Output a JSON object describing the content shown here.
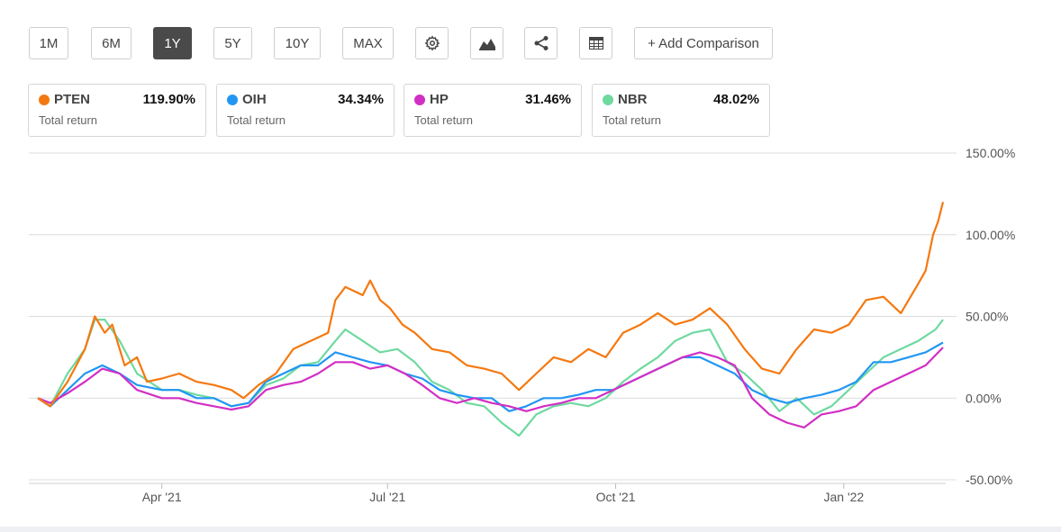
{
  "toolbar": {
    "periods": [
      "1M",
      "6M",
      "1Y",
      "5Y",
      "10Y",
      "MAX"
    ],
    "active_period": "1Y",
    "icons": [
      "gear-icon",
      "chart-type-icon",
      "share-icon",
      "table-icon"
    ],
    "add_comparison": "+ Add Comparison"
  },
  "cards": [
    {
      "symbol": "PTEN",
      "value": "119.90%",
      "sub": "Total return",
      "color": "#f5780f"
    },
    {
      "symbol": "OIH",
      "value": "34.34%",
      "sub": "Total return",
      "color": "#2196f3"
    },
    {
      "symbol": "HP",
      "value": "31.46%",
      "sub": "Total return",
      "color": "#d12fc4"
    },
    {
      "symbol": "NBR",
      "value": "48.02%",
      "sub": "Total return",
      "color": "#6fd9a0"
    }
  ],
  "chart_data": {
    "type": "line",
    "title": "",
    "xlabel": "",
    "ylabel": "",
    "ylim": [
      -50,
      150
    ],
    "yticks": [
      "150.00%",
      "100.00%",
      "50.00%",
      "0.00%",
      "-50.00%"
    ],
    "ytick_values": [
      150,
      100,
      50,
      0,
      -50
    ],
    "xticks": [
      "Apr '21",
      "Jul '21",
      "Oct '21",
      "Jan '22"
    ],
    "xtick_dates": [
      "2021-04-01",
      "2021-07-01",
      "2021-10-01",
      "2022-01-01"
    ],
    "x_range": [
      "2021-02-10",
      "2022-02-10"
    ],
    "grid": true,
    "series": [
      {
        "name": "PTEN",
        "color": "#f5780f",
        "points": [
          [
            "2021-02-10",
            0
          ],
          [
            "2021-02-15",
            -5
          ],
          [
            "2021-02-22",
            10
          ],
          [
            "2021-03-01",
            30
          ],
          [
            "2021-03-05",
            50
          ],
          [
            "2021-03-09",
            40
          ],
          [
            "2021-03-12",
            45
          ],
          [
            "2021-03-17",
            20
          ],
          [
            "2021-03-22",
            25
          ],
          [
            "2021-03-26",
            10
          ],
          [
            "2021-04-01",
            12
          ],
          [
            "2021-04-08",
            15
          ],
          [
            "2021-04-15",
            10
          ],
          [
            "2021-04-22",
            8
          ],
          [
            "2021-04-29",
            5
          ],
          [
            "2021-05-04",
            0
          ],
          [
            "2021-05-10",
            8
          ],
          [
            "2021-05-17",
            15
          ],
          [
            "2021-05-24",
            30
          ],
          [
            "2021-05-31",
            35
          ],
          [
            "2021-06-07",
            40
          ],
          [
            "2021-06-10",
            60
          ],
          [
            "2021-06-14",
            68
          ],
          [
            "2021-06-21",
            63
          ],
          [
            "2021-06-24",
            72
          ],
          [
            "2021-06-28",
            60
          ],
          [
            "2021-07-02",
            55
          ],
          [
            "2021-07-07",
            45
          ],
          [
            "2021-07-12",
            40
          ],
          [
            "2021-07-19",
            30
          ],
          [
            "2021-07-26",
            28
          ],
          [
            "2021-08-02",
            20
          ],
          [
            "2021-08-09",
            18
          ],
          [
            "2021-08-16",
            15
          ],
          [
            "2021-08-23",
            5
          ],
          [
            "2021-08-30",
            15
          ],
          [
            "2021-09-06",
            25
          ],
          [
            "2021-09-13",
            22
          ],
          [
            "2021-09-20",
            30
          ],
          [
            "2021-09-27",
            25
          ],
          [
            "2021-10-04",
            40
          ],
          [
            "2021-10-11",
            45
          ],
          [
            "2021-10-18",
            52
          ],
          [
            "2021-10-25",
            45
          ],
          [
            "2021-11-01",
            48
          ],
          [
            "2021-11-08",
            55
          ],
          [
            "2021-11-15",
            45
          ],
          [
            "2021-11-22",
            30
          ],
          [
            "2021-11-29",
            18
          ],
          [
            "2021-12-06",
            15
          ],
          [
            "2021-12-13",
            30
          ],
          [
            "2021-12-20",
            42
          ],
          [
            "2021-12-27",
            40
          ],
          [
            "2022-01-03",
            45
          ],
          [
            "2022-01-10",
            60
          ],
          [
            "2022-01-17",
            62
          ],
          [
            "2022-01-24",
            52
          ],
          [
            "2022-01-31",
            70
          ],
          [
            "2022-02-03",
            78
          ],
          [
            "2022-02-06",
            100
          ],
          [
            "2022-02-08",
            108
          ],
          [
            "2022-02-10",
            120
          ]
        ]
      },
      {
        "name": "OIH",
        "color": "#2196f3",
        "points": [
          [
            "2021-02-10",
            0
          ],
          [
            "2021-02-15",
            -5
          ],
          [
            "2021-02-22",
            5
          ],
          [
            "2021-03-01",
            15
          ],
          [
            "2021-03-08",
            20
          ],
          [
            "2021-03-15",
            15
          ],
          [
            "2021-03-22",
            8
          ],
          [
            "2021-04-01",
            5
          ],
          [
            "2021-04-08",
            5
          ],
          [
            "2021-04-15",
            0
          ],
          [
            "2021-04-22",
            0
          ],
          [
            "2021-04-29",
            -5
          ],
          [
            "2021-05-06",
            -3
          ],
          [
            "2021-05-13",
            10
          ],
          [
            "2021-05-20",
            15
          ],
          [
            "2021-05-27",
            20
          ],
          [
            "2021-06-03",
            20
          ],
          [
            "2021-06-10",
            28
          ],
          [
            "2021-06-17",
            25
          ],
          [
            "2021-06-24",
            22
          ],
          [
            "2021-07-01",
            20
          ],
          [
            "2021-07-08",
            15
          ],
          [
            "2021-07-15",
            12
          ],
          [
            "2021-07-22",
            5
          ],
          [
            "2021-07-29",
            2
          ],
          [
            "2021-08-05",
            0
          ],
          [
            "2021-08-12",
            0
          ],
          [
            "2021-08-19",
            -8
          ],
          [
            "2021-08-26",
            -5
          ],
          [
            "2021-09-02",
            0
          ],
          [
            "2021-09-09",
            0
          ],
          [
            "2021-09-16",
            2
          ],
          [
            "2021-09-23",
            5
          ],
          [
            "2021-09-30",
            5
          ],
          [
            "2021-10-07",
            10
          ],
          [
            "2021-10-14",
            15
          ],
          [
            "2021-10-21",
            20
          ],
          [
            "2021-10-28",
            25
          ],
          [
            "2021-11-04",
            25
          ],
          [
            "2021-11-11",
            20
          ],
          [
            "2021-11-18",
            15
          ],
          [
            "2021-11-25",
            5
          ],
          [
            "2021-12-02",
            0
          ],
          [
            "2021-12-09",
            -3
          ],
          [
            "2021-12-16",
            0
          ],
          [
            "2021-12-23",
            2
          ],
          [
            "2021-12-30",
            5
          ],
          [
            "2022-01-06",
            10
          ],
          [
            "2022-01-13",
            22
          ],
          [
            "2022-01-20",
            22
          ],
          [
            "2022-01-27",
            25
          ],
          [
            "2022-02-03",
            28
          ],
          [
            "2022-02-10",
            34
          ]
        ]
      },
      {
        "name": "HP",
        "color": "#d12fc4",
        "points": [
          [
            "2021-02-10",
            0
          ],
          [
            "2021-02-15",
            -3
          ],
          [
            "2021-02-22",
            3
          ],
          [
            "2021-03-01",
            10
          ],
          [
            "2021-03-08",
            18
          ],
          [
            "2021-03-15",
            15
          ],
          [
            "2021-03-22",
            5
          ],
          [
            "2021-04-01",
            0
          ],
          [
            "2021-04-08",
            0
          ],
          [
            "2021-04-15",
            -3
          ],
          [
            "2021-04-22",
            -5
          ],
          [
            "2021-04-29",
            -7
          ],
          [
            "2021-05-06",
            -5
          ],
          [
            "2021-05-13",
            5
          ],
          [
            "2021-05-20",
            8
          ],
          [
            "2021-05-27",
            10
          ],
          [
            "2021-06-03",
            15
          ],
          [
            "2021-06-10",
            22
          ],
          [
            "2021-06-17",
            22
          ],
          [
            "2021-06-24",
            18
          ],
          [
            "2021-07-01",
            20
          ],
          [
            "2021-07-08",
            15
          ],
          [
            "2021-07-15",
            8
          ],
          [
            "2021-07-22",
            0
          ],
          [
            "2021-07-29",
            -3
          ],
          [
            "2021-08-05",
            0
          ],
          [
            "2021-08-12",
            -3
          ],
          [
            "2021-08-19",
            -5
          ],
          [
            "2021-08-26",
            -8
          ],
          [
            "2021-09-02",
            -5
          ],
          [
            "2021-09-09",
            -3
          ],
          [
            "2021-09-16",
            0
          ],
          [
            "2021-09-23",
            0
          ],
          [
            "2021-09-30",
            5
          ],
          [
            "2021-10-07",
            10
          ],
          [
            "2021-10-14",
            15
          ],
          [
            "2021-10-21",
            20
          ],
          [
            "2021-10-28",
            25
          ],
          [
            "2021-11-04",
            28
          ],
          [
            "2021-11-11",
            25
          ],
          [
            "2021-11-18",
            20
          ],
          [
            "2021-11-25",
            0
          ],
          [
            "2021-12-02",
            -10
          ],
          [
            "2021-12-09",
            -15
          ],
          [
            "2021-12-16",
            -18
          ],
          [
            "2021-12-23",
            -10
          ],
          [
            "2021-12-30",
            -8
          ],
          [
            "2022-01-06",
            -5
          ],
          [
            "2022-01-13",
            5
          ],
          [
            "2022-01-20",
            10
          ],
          [
            "2022-01-27",
            15
          ],
          [
            "2022-02-03",
            20
          ],
          [
            "2022-02-10",
            31
          ]
        ]
      },
      {
        "name": "NBR",
        "color": "#6fd9a0",
        "points": [
          [
            "2021-02-10",
            0
          ],
          [
            "2021-02-15",
            -5
          ],
          [
            "2021-02-22",
            15
          ],
          [
            "2021-03-01",
            30
          ],
          [
            "2021-03-05",
            48
          ],
          [
            "2021-03-09",
            48
          ],
          [
            "2021-03-15",
            35
          ],
          [
            "2021-03-22",
            15
          ],
          [
            "2021-04-01",
            5
          ],
          [
            "2021-04-08",
            5
          ],
          [
            "2021-04-15",
            2
          ],
          [
            "2021-04-22",
            0
          ],
          [
            "2021-04-29",
            -5
          ],
          [
            "2021-05-06",
            -3
          ],
          [
            "2021-05-13",
            8
          ],
          [
            "2021-05-20",
            12
          ],
          [
            "2021-05-27",
            20
          ],
          [
            "2021-06-03",
            22
          ],
          [
            "2021-06-10",
            35
          ],
          [
            "2021-06-14",
            42
          ],
          [
            "2021-06-21",
            35
          ],
          [
            "2021-06-28",
            28
          ],
          [
            "2021-07-05",
            30
          ],
          [
            "2021-07-12",
            22
          ],
          [
            "2021-07-19",
            10
          ],
          [
            "2021-07-26",
            5
          ],
          [
            "2021-08-02",
            -3
          ],
          [
            "2021-08-09",
            -5
          ],
          [
            "2021-08-16",
            -15
          ],
          [
            "2021-08-23",
            -23
          ],
          [
            "2021-08-30",
            -10
          ],
          [
            "2021-09-06",
            -5
          ],
          [
            "2021-09-13",
            -3
          ],
          [
            "2021-09-20",
            -5
          ],
          [
            "2021-09-27",
            0
          ],
          [
            "2021-10-04",
            10
          ],
          [
            "2021-10-11",
            18
          ],
          [
            "2021-10-18",
            25
          ],
          [
            "2021-10-25",
            35
          ],
          [
            "2021-11-01",
            40
          ],
          [
            "2021-11-08",
            42
          ],
          [
            "2021-11-15",
            22
          ],
          [
            "2021-11-22",
            15
          ],
          [
            "2021-11-29",
            5
          ],
          [
            "2021-12-06",
            -8
          ],
          [
            "2021-12-13",
            0
          ],
          [
            "2021-12-20",
            -10
          ],
          [
            "2021-12-27",
            -5
          ],
          [
            "2022-01-03",
            5
          ],
          [
            "2022-01-10",
            15
          ],
          [
            "2022-01-17",
            25
          ],
          [
            "2022-01-24",
            30
          ],
          [
            "2022-01-31",
            35
          ],
          [
            "2022-02-07",
            42
          ],
          [
            "2022-02-10",
            48
          ]
        ]
      }
    ]
  }
}
